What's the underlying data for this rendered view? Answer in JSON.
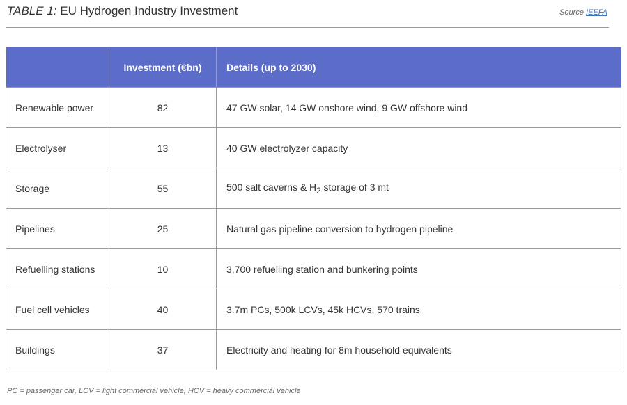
{
  "title": {
    "label": "TABLE 1:",
    "text": "EU Hydrogen Industry Investment"
  },
  "source": {
    "prefix": "Source",
    "link": "IEEFA"
  },
  "table": {
    "headers": [
      "",
      "Investment (€bn)",
      "Details (up to 2030)"
    ],
    "rows": [
      {
        "category": "Renewable power",
        "investment": "82",
        "details": "47 GW solar, 14 GW onshore wind, 9 GW offshore wind"
      },
      {
        "category": "Electrolyser",
        "investment": "13",
        "details": "40 GW electrolyzer capacity"
      },
      {
        "category": "Storage",
        "investment": "55",
        "details_pre": "500 salt caverns & H",
        "details_sub": "2",
        "details_post": " storage of 3 mt"
      },
      {
        "category": "Pipelines",
        "investment": "25",
        "details": "Natural gas pipeline conversion to hydrogen pipeline"
      },
      {
        "category": "Refuelling stations",
        "investment": "10",
        "details": "3,700 refuelling station and bunkering points"
      },
      {
        "category": "Fuel cell vehicles",
        "investment": "40",
        "details": "3.7m PCs, 500k LCVs, 45k HCVs, 570 trains"
      },
      {
        "category": "Buildings",
        "investment": "37",
        "details": "Electricity and heating for 8m household equivalents"
      }
    ]
  },
  "footnote": "PC = passenger car, LCV = light commercial vehicle, HCV = heavy commercial vehicle",
  "colors": {
    "header_bg": "#5b6cc9",
    "header_text": "#ffffff",
    "link": "#3a6fb5"
  }
}
